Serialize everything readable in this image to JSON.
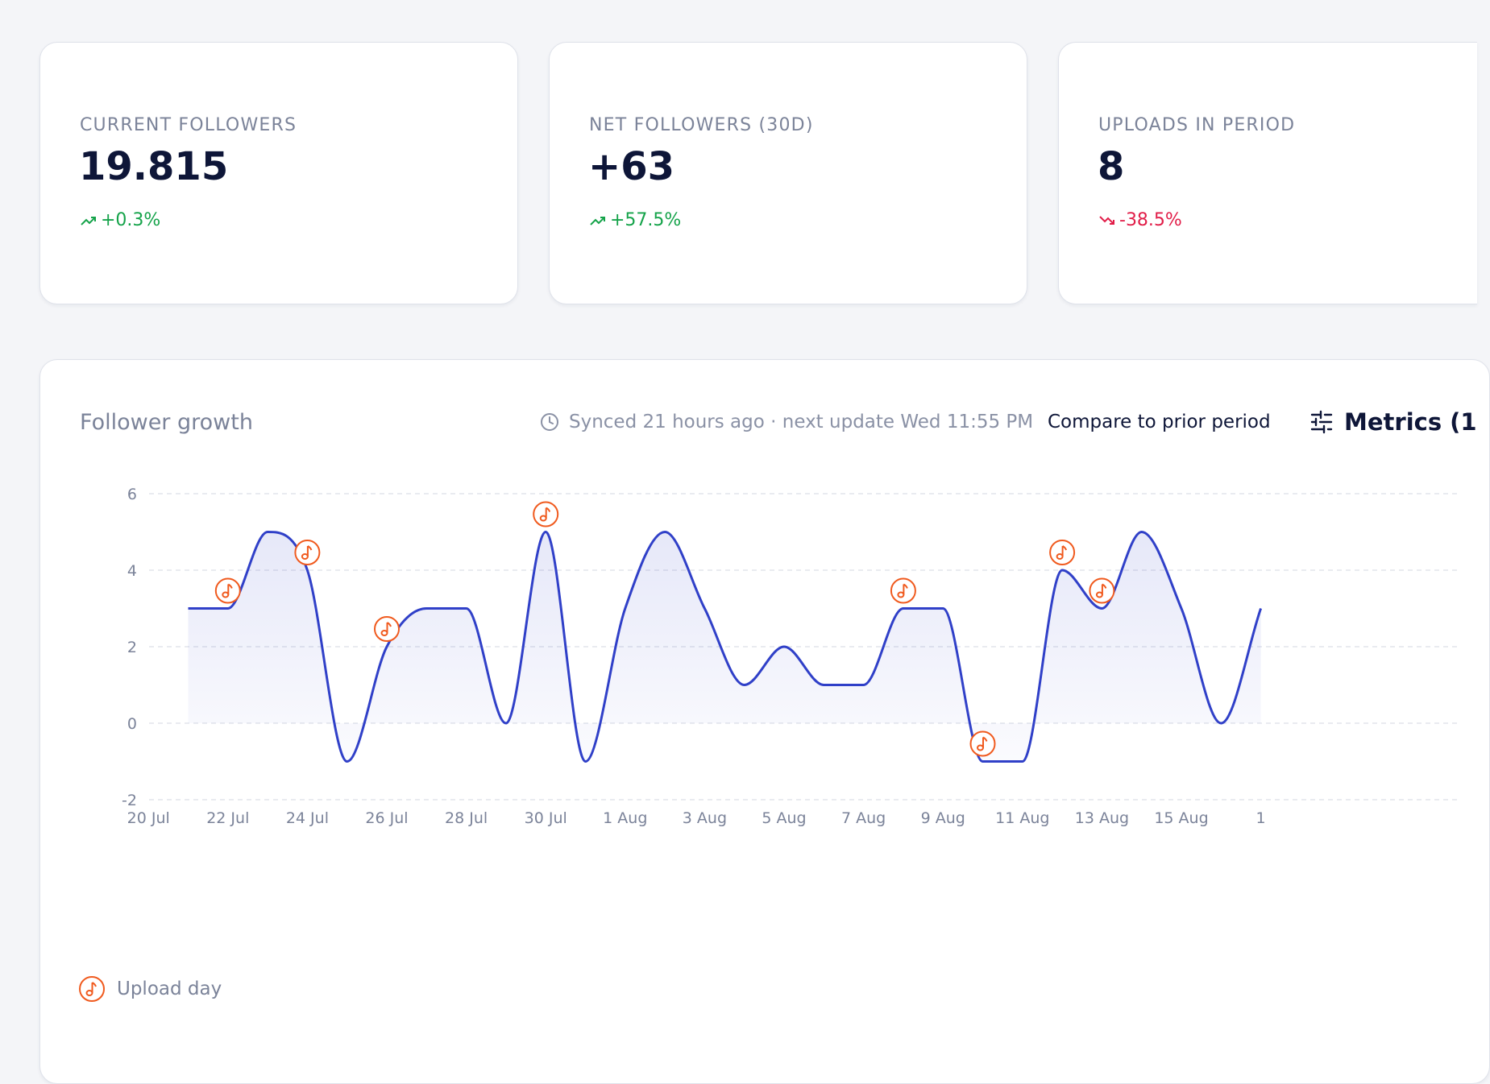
{
  "stats": [
    {
      "label": "CURRENT FOLLOWERS",
      "value": "19.815",
      "change": "+0.3%",
      "trend": "up"
    },
    {
      "label": "NET FOLLOWERS (30D)",
      "value": "+63",
      "change": "+57.5%",
      "trend": "up"
    },
    {
      "label": "UPLOADS IN PERIOD",
      "value": "8",
      "change": "-38.5%",
      "trend": "down"
    }
  ],
  "panel": {
    "title": "Follower growth",
    "sync_text": "Synced 21 hours ago · next update Wed 11:55 PM",
    "compare_label": "Compare to prior period",
    "metrics_label": "Metrics (1"
  },
  "legend": {
    "upload_label": "Upload day"
  },
  "colors": {
    "line": "#3040c8",
    "upload_marker": "#f05a1e",
    "positive": "#15a34a",
    "negative": "#e11d48"
  },
  "chart_data": {
    "type": "area",
    "title": "Follower growth",
    "xlabel": "",
    "ylabel": "",
    "ylim": [
      -2,
      6
    ],
    "yticks": [
      6,
      4,
      2,
      0,
      -2
    ],
    "xtick_labels": [
      "20 Jul",
      "22 Jul",
      "24 Jul",
      "26 Jul",
      "28 Jul",
      "30 Jul",
      "1 Aug",
      "3 Aug",
      "5 Aug",
      "7 Aug",
      "9 Aug",
      "11 Aug",
      "13 Aug",
      "15 Aug",
      "1"
    ],
    "grid": true,
    "series": [
      {
        "x": [
          "21 Jul",
          "22 Jul",
          "23 Jul",
          "24 Jul",
          "25 Jul",
          "26 Jul",
          "27 Jul",
          "28 Jul",
          "29 Jul",
          "30 Jul",
          "31 Jul",
          "1 Aug",
          "2 Aug",
          "3 Aug",
          "4 Aug",
          "5 Aug",
          "6 Aug",
          "7 Aug",
          "8 Aug",
          "9 Aug",
          "10 Aug",
          "11 Aug",
          "12 Aug",
          "13 Aug",
          "14 Aug",
          "15 Aug",
          "16 Aug",
          "17 Aug"
        ],
        "values": [
          3,
          3,
          5,
          4,
          -1,
          2,
          3,
          3,
          0,
          5,
          -1,
          3,
          5,
          3,
          1,
          2,
          1,
          1,
          3,
          3,
          -1,
          -1,
          4,
          3,
          5,
          3,
          0,
          3
        ]
      }
    ],
    "upload_days": [
      "22 Jul",
      "24 Jul",
      "26 Jul",
      "30 Jul",
      "8 Aug",
      "10 Aug",
      "12 Aug",
      "13 Aug"
    ],
    "legend": [
      "Upload day"
    ]
  }
}
